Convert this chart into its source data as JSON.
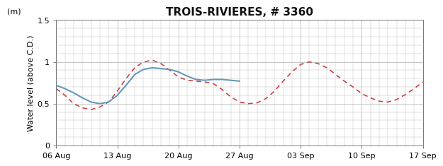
{
  "title": "TROIS-RIVIERES, # 3360",
  "ylabel_top": "(m)",
  "ylabel_main": "Water level (above C.D.)",
  "ylim": [
    0,
    1.5
  ],
  "yticks": [
    0,
    0.5,
    1.0,
    1.5
  ],
  "background_color": "#ffffff",
  "grid_color": "#bbbbbb",
  "blue_color": "#6699bb",
  "red_color": "#cc4444",
  "xtick_labels": [
    "06 Aug",
    "13 Aug",
    "20 Aug",
    "27 Aug",
    "03 Sep",
    "10 Sep",
    "17 Sep"
  ],
  "xtick_days": [
    0,
    7,
    14,
    21,
    28,
    35,
    42
  ],
  "blue_x": [
    0,
    1,
    2,
    3,
    4,
    5,
    6,
    7,
    8,
    9,
    10,
    11,
    12,
    13,
    14,
    15,
    16,
    17,
    18,
    19,
    20,
    21
  ],
  "blue_y": [
    0.72,
    0.68,
    0.63,
    0.57,
    0.52,
    0.5,
    0.52,
    0.6,
    0.72,
    0.85,
    0.91,
    0.93,
    0.92,
    0.91,
    0.88,
    0.83,
    0.79,
    0.78,
    0.79,
    0.79,
    0.78,
    0.77
  ],
  "red_x": [
    0,
    1,
    2,
    3,
    4,
    5,
    6,
    7,
    8,
    9,
    10,
    11,
    12,
    13,
    14,
    15,
    16,
    17,
    18,
    19,
    20,
    21,
    22,
    23,
    24,
    25,
    26,
    27,
    28,
    29,
    30,
    31,
    32,
    33,
    34,
    35,
    36,
    37,
    38,
    39,
    40,
    41,
    42
  ],
  "red_y": [
    0.68,
    0.6,
    0.5,
    0.45,
    0.43,
    0.46,
    0.52,
    0.65,
    0.8,
    0.93,
    1.0,
    1.02,
    0.98,
    0.9,
    0.82,
    0.78,
    0.77,
    0.76,
    0.74,
    0.67,
    0.58,
    0.52,
    0.5,
    0.51,
    0.56,
    0.65,
    0.77,
    0.88,
    0.97,
    1.0,
    0.98,
    0.93,
    0.85,
    0.77,
    0.7,
    0.62,
    0.57,
    0.53,
    0.52,
    0.55,
    0.61,
    0.68,
    0.76
  ],
  "title_fontsize": 11,
  "tick_fontsize": 8,
  "ylabel_fontsize": 8
}
